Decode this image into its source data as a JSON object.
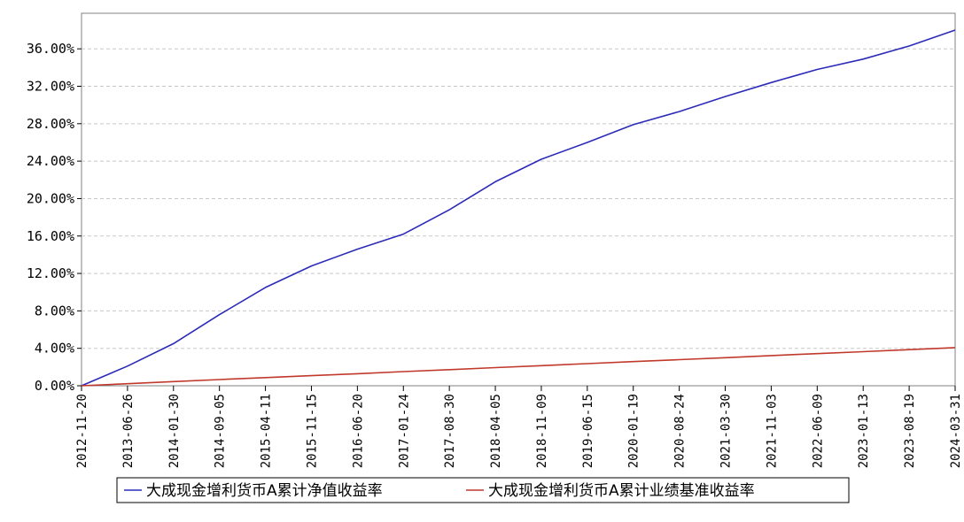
{
  "chart_data": {
    "type": "line",
    "title": "",
    "xlabel": "",
    "ylabel": "",
    "x_ticks": [
      "2012-11-20",
      "2013-06-26",
      "2014-01-30",
      "2014-09-05",
      "2015-04-11",
      "2015-11-15",
      "2016-06-20",
      "2017-01-24",
      "2017-08-30",
      "2018-04-05",
      "2018-11-09",
      "2019-06-15",
      "2020-01-19",
      "2020-08-24",
      "2021-03-30",
      "2021-11-03",
      "2022-06-09",
      "2023-01-13",
      "2023-08-19",
      "2024-03-31"
    ],
    "y_ticks": [
      "0.00%",
      "4.00%",
      "8.00%",
      "12.00%",
      "16.00%",
      "20.00%",
      "24.00%",
      "28.00%",
      "32.00%",
      "36.00%"
    ],
    "ylim": [
      0,
      39.8
    ],
    "y_unit": "%",
    "grid": true,
    "legend_position": "bottom",
    "series": [
      {
        "name": "大成现金增利货币A累计净值收益率",
        "color": "#2b2bb8",
        "values": [
          0.0,
          2.1,
          4.5,
          7.6,
          10.5,
          12.8,
          14.6,
          16.2,
          18.8,
          21.8,
          24.2,
          26.0,
          27.9,
          29.3,
          30.9,
          32.4,
          33.8,
          34.9,
          36.3,
          38.0
        ]
      },
      {
        "name": "大成现金增利货币A累计业绩基准收益率",
        "color": "#c0392b",
        "values": [
          0.0,
          0.22,
          0.44,
          0.66,
          0.87,
          1.08,
          1.29,
          1.51,
          1.72,
          1.94,
          2.15,
          2.36,
          2.58,
          2.79,
          3.0,
          3.22,
          3.43,
          3.64,
          3.86,
          4.07
        ]
      }
    ]
  }
}
